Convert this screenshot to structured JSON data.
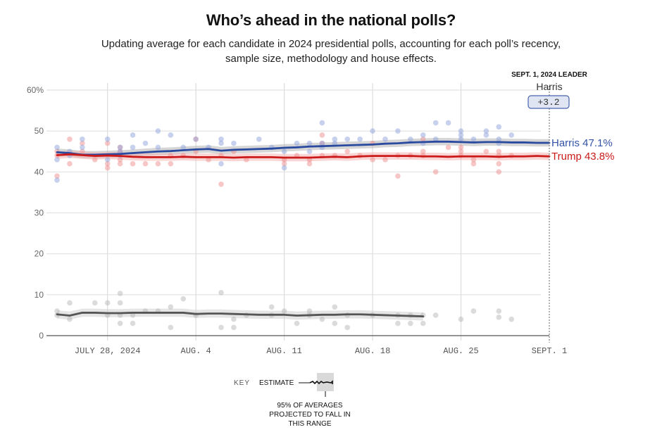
{
  "header": {
    "title": "Who’s ahead in the national polls?",
    "subtitle": "Updating average for each candidate in 2024 presidential polls, accounting for each poll’s recency, sample size, methodology and house effects."
  },
  "leader": {
    "heading": "SEPT. 1, 2024 LEADER",
    "name": "Harris",
    "margin": "+3.2"
  },
  "key": {
    "label": "KEY",
    "estimate": "ESTIMATE",
    "range_note_lines": [
      "95% OF AVERAGES",
      "PROJECTED TO FALL IN",
      "THIS RANGE"
    ]
  },
  "colors": {
    "harris": "#2a4aa0",
    "trump": "#cc1a1a",
    "other": "#555555",
    "harris_label": "#3554a8",
    "trump_label": "#cc1a1a"
  },
  "chart_data": {
    "type": "line",
    "title": "Who’s ahead in the national polls?",
    "xlabel": "",
    "ylabel": "",
    "ylim": [
      0,
      60
    ],
    "yticks": [
      0,
      10,
      20,
      30,
      40,
      50,
      60
    ],
    "ytick_labels": [
      "0",
      "10",
      "20",
      "30",
      "40",
      "50",
      "60%"
    ],
    "xlim_days": [
      0,
      39
    ],
    "x_start_date": "July 24, 2024",
    "xticks": [
      {
        "day": 4,
        "label": "JULY 28, 2024"
      },
      {
        "day": 11,
        "label": "AUG. 4"
      },
      {
        "day": 18,
        "label": "AUG. 11"
      },
      {
        "day": 25,
        "label": "AUG. 18"
      },
      {
        "day": 32,
        "label": "AUG. 25"
      },
      {
        "day": 39,
        "label": "SEPT. 1"
      }
    ],
    "grid": true,
    "legend": "end-labels-right",
    "end_labels": [
      {
        "name": "Harris",
        "value": "47.1%"
      },
      {
        "name": "Trump",
        "value": "43.8%"
      }
    ],
    "series": [
      {
        "name": "Harris",
        "key": "harris",
        "band": 0.9,
        "x": [
          0,
          1,
          2,
          3,
          4,
          5,
          6,
          7,
          8,
          9,
          10,
          11,
          12,
          13,
          14,
          15,
          16,
          17,
          18,
          19,
          20,
          21,
          22,
          23,
          24,
          25,
          26,
          27,
          28,
          29,
          30,
          31,
          32,
          33,
          34,
          35,
          36,
          37,
          38,
          39
        ],
        "values": [
          44.8,
          44.6,
          44.2,
          44.2,
          44.3,
          44.4,
          44.6,
          44.8,
          45.0,
          45.1,
          45.3,
          45.5,
          45.6,
          45.2,
          45.4,
          45.5,
          45.6,
          45.7,
          45.9,
          46.0,
          46.2,
          46.3,
          46.4,
          46.5,
          46.6,
          46.7,
          46.9,
          47.0,
          47.2,
          47.3,
          47.4,
          47.4,
          47.3,
          47.2,
          47.3,
          47.3,
          47.2,
          47.2,
          47.1,
          47.1
        ]
      },
      {
        "name": "Trump",
        "key": "trump",
        "band": 0.9,
        "x": [
          0,
          1,
          2,
          3,
          4,
          5,
          6,
          7,
          8,
          9,
          10,
          11,
          12,
          13,
          14,
          15,
          16,
          17,
          18,
          19,
          20,
          21,
          22,
          23,
          24,
          25,
          26,
          27,
          28,
          29,
          30,
          31,
          32,
          33,
          34,
          35,
          36,
          37,
          38,
          39
        ],
        "values": [
          44.1,
          44.3,
          44.1,
          43.9,
          44.0,
          43.9,
          43.7,
          43.6,
          43.6,
          43.6,
          43.7,
          43.6,
          43.6,
          43.6,
          43.5,
          43.6,
          43.6,
          43.6,
          43.5,
          43.5,
          43.5,
          43.6,
          43.7,
          43.6,
          43.8,
          43.9,
          43.9,
          43.9,
          43.9,
          43.8,
          43.8,
          43.7,
          43.8,
          43.8,
          43.8,
          43.7,
          43.8,
          43.8,
          43.9,
          43.8
        ]
      },
      {
        "name": "Other",
        "key": "other",
        "band": 1.0,
        "x": [
          0,
          1,
          2,
          3,
          4,
          5,
          6,
          7,
          8,
          9,
          10,
          11,
          12,
          13,
          14,
          15,
          16,
          17,
          18,
          19,
          20,
          21,
          22,
          23,
          24,
          25,
          26,
          27,
          28,
          29
        ],
        "values": [
          5.2,
          4.9,
          5.6,
          5.6,
          5.5,
          5.5,
          5.6,
          5.6,
          5.6,
          5.6,
          5.6,
          5.3,
          5.4,
          5.4,
          5.3,
          5.2,
          5.1,
          5.1,
          5.1,
          4.9,
          5.0,
          5.1,
          5.1,
          5.2,
          5.2,
          5.1,
          5.0,
          4.9,
          4.8,
          4.7
        ]
      }
    ],
    "polls": {
      "harris": [
        [
          0,
          46
        ],
        [
          0,
          43
        ],
        [
          0,
          38
        ],
        [
          1,
          45
        ],
        [
          1,
          44
        ],
        [
          2,
          48
        ],
        [
          2,
          46
        ],
        [
          4,
          48
        ],
        [
          4,
          43
        ],
        [
          5,
          46
        ],
        [
          5,
          45
        ],
        [
          5,
          44
        ],
        [
          6,
          49
        ],
        [
          6,
          46
        ],
        [
          7,
          47
        ],
        [
          8,
          50
        ],
        [
          8,
          46
        ],
        [
          9,
          49
        ],
        [
          10,
          46
        ],
        [
          11,
          48
        ],
        [
          12,
          46
        ],
        [
          13,
          48
        ],
        [
          13,
          47
        ],
        [
          13,
          42
        ],
        [
          14,
          47
        ],
        [
          16,
          48
        ],
        [
          17,
          46
        ],
        [
          18,
          45
        ],
        [
          18,
          41
        ],
        [
          19,
          47
        ],
        [
          20,
          47
        ],
        [
          20,
          45
        ],
        [
          21,
          52
        ],
        [
          21,
          47
        ],
        [
          21,
          46
        ],
        [
          22,
          48
        ],
        [
          22,
          47
        ],
        [
          23,
          48
        ],
        [
          24,
          48
        ],
        [
          25,
          50
        ],
        [
          26,
          48
        ],
        [
          27,
          50
        ],
        [
          28,
          48
        ],
        [
          29,
          49
        ],
        [
          29,
          47
        ],
        [
          30,
          52
        ],
        [
          30,
          48
        ],
        [
          31,
          52
        ],
        [
          32,
          50
        ],
        [
          32,
          49
        ],
        [
          32,
          48
        ],
        [
          33,
          48
        ],
        [
          34,
          50
        ],
        [
          34,
          49
        ],
        [
          35,
          51
        ],
        [
          35,
          48
        ],
        [
          35,
          47
        ],
        [
          36,
          49
        ]
      ],
      "trump": [
        [
          0,
          45
        ],
        [
          0,
          44
        ],
        [
          0,
          39
        ],
        [
          1,
          48
        ],
        [
          1,
          42
        ],
        [
          2,
          47
        ],
        [
          2,
          45
        ],
        [
          3,
          43
        ],
        [
          4,
          47
        ],
        [
          4,
          42
        ],
        [
          4,
          41
        ],
        [
          5,
          46
        ],
        [
          5,
          45
        ],
        [
          5,
          43
        ],
        [
          5,
          42
        ],
        [
          6,
          42
        ],
        [
          7,
          42
        ],
        [
          8,
          42
        ],
        [
          9,
          44
        ],
        [
          9,
          42
        ],
        [
          10,
          44
        ],
        [
          11,
          48
        ],
        [
          11,
          45
        ],
        [
          12,
          43
        ],
        [
          13,
          44
        ],
        [
          13,
          37
        ],
        [
          14,
          45
        ],
        [
          15,
          43
        ],
        [
          18,
          43
        ],
        [
          18,
          42
        ],
        [
          19,
          44
        ],
        [
          20,
          42
        ],
        [
          20,
          43
        ],
        [
          21,
          49
        ],
        [
          21,
          47
        ],
        [
          21,
          44
        ],
        [
          22,
          44
        ],
        [
          23,
          45
        ],
        [
          24,
          44
        ],
        [
          25,
          47
        ],
        [
          25,
          43
        ],
        [
          26,
          43
        ],
        [
          27,
          44
        ],
        [
          27,
          39
        ],
        [
          28,
          44
        ],
        [
          29,
          48
        ],
        [
          29,
          45
        ],
        [
          29,
          44
        ],
        [
          30,
          40
        ],
        [
          31,
          46
        ],
        [
          32,
          46
        ],
        [
          32,
          45
        ],
        [
          32,
          44
        ],
        [
          33,
          43
        ],
        [
          33,
          42
        ],
        [
          34,
          45
        ],
        [
          35,
          45
        ],
        [
          35,
          44
        ],
        [
          35,
          42
        ],
        [
          35,
          40
        ],
        [
          36,
          44
        ]
      ],
      "other": [
        [
          0,
          6
        ],
        [
          0,
          5
        ],
        [
          1,
          8
        ],
        [
          1,
          4
        ],
        [
          3,
          8
        ],
        [
          4,
          8
        ],
        [
          4,
          5
        ],
        [
          5,
          10.3
        ],
        [
          5,
          8
        ],
        [
          5,
          5
        ],
        [
          5,
          3
        ],
        [
          6,
          5
        ],
        [
          6,
          3
        ],
        [
          7,
          6
        ],
        [
          8,
          6
        ],
        [
          9,
          7
        ],
        [
          9,
          2
        ],
        [
          10,
          9
        ],
        [
          11,
          5
        ],
        [
          13,
          10.5
        ],
        [
          13,
          2
        ],
        [
          14,
          4
        ],
        [
          14,
          2
        ],
        [
          15,
          5
        ],
        [
          17,
          7
        ],
        [
          17,
          5
        ],
        [
          18,
          6
        ],
        [
          19,
          3
        ],
        [
          20,
          5
        ],
        [
          20,
          6
        ],
        [
          21,
          4
        ],
        [
          22,
          7
        ],
        [
          22,
          3
        ],
        [
          23,
          5
        ],
        [
          23,
          2
        ],
        [
          25,
          5
        ],
        [
          27,
          5
        ],
        [
          27,
          3
        ],
        [
          28,
          5
        ],
        [
          28,
          3
        ],
        [
          29,
          5
        ],
        [
          29,
          3
        ],
        [
          30,
          5
        ],
        [
          32,
          4
        ],
        [
          33,
          6
        ],
        [
          35,
          6
        ],
        [
          35,
          4.5
        ],
        [
          36,
          4
        ]
      ]
    }
  }
}
